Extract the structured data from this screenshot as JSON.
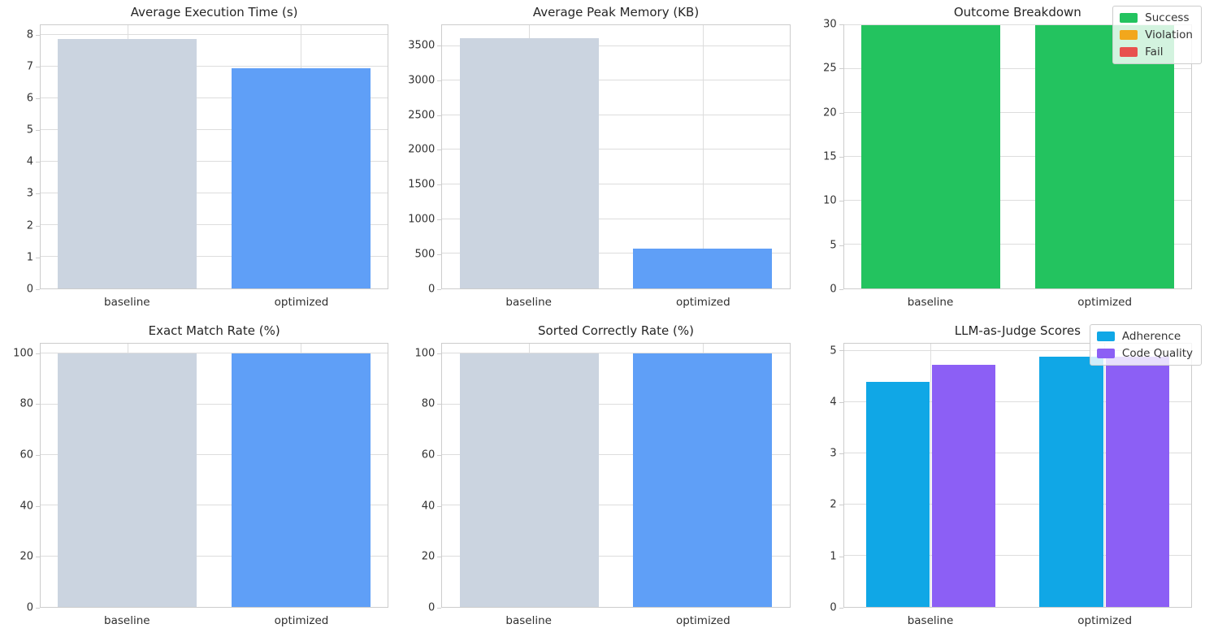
{
  "colors": {
    "baseline_bar": "#cbd4e0",
    "optimized_bar": "#5f9ff7",
    "success": "#23c35f",
    "violation": "#f2a71c",
    "fail": "#e8504e",
    "adherence": "#10a7e6",
    "code_quality": "#8c5ff5",
    "grid": "#dddddd",
    "spine": "#cccccc",
    "title_text": "#262626",
    "tick_text": "#333333"
  },
  "chart_data": [
    {
      "type": "bar",
      "title": "Average Execution Time (s)",
      "categories": [
        "baseline",
        "optimized"
      ],
      "series": [
        {
          "name": "value",
          "values": [
            7.88,
            6.96
          ]
        }
      ],
      "bar_colors": [
        "#cbd4e0",
        "#5f9ff7"
      ],
      "ylim": [
        0,
        8.32
      ],
      "yticks": [
        0,
        1,
        2,
        3,
        4,
        5,
        6,
        7,
        8
      ],
      "grid": true,
      "legend": null
    },
    {
      "type": "bar",
      "title": "Average Peak Memory (KB)",
      "categories": [
        "baseline",
        "optimized"
      ],
      "series": [
        {
          "name": "value",
          "values": [
            3610,
            570
          ]
        }
      ],
      "bar_colors": [
        "#cbd4e0",
        "#5f9ff7"
      ],
      "ylim": [
        0,
        3800
      ],
      "yticks": [
        0,
        500,
        1000,
        1500,
        2000,
        2500,
        3000,
        3500
      ],
      "grid": true,
      "legend": null
    },
    {
      "type": "stacked_bar",
      "title": "Outcome Breakdown",
      "categories": [
        "baseline",
        "optimized"
      ],
      "series": [
        {
          "name": "Success",
          "color": "#23c35f",
          "values": [
            30,
            30
          ]
        },
        {
          "name": "Violation",
          "color": "#f2a71c",
          "values": [
            0,
            0
          ]
        },
        {
          "name": "Fail",
          "color": "#e8504e",
          "values": [
            0,
            0
          ]
        }
      ],
      "ylim": [
        0,
        30
      ],
      "yticks": [
        0,
        5,
        10,
        15,
        20,
        25,
        30
      ],
      "grid": true,
      "legend": "upper-right"
    },
    {
      "type": "bar",
      "title": "Exact Match Rate (%)",
      "categories": [
        "baseline",
        "optimized"
      ],
      "series": [
        {
          "name": "value",
          "values": [
            100,
            100
          ]
        }
      ],
      "bar_colors": [
        "#cbd4e0",
        "#5f9ff7"
      ],
      "ylim": [
        0,
        104
      ],
      "yticks": [
        0,
        20,
        40,
        60,
        80,
        100
      ],
      "grid": true,
      "legend": null
    },
    {
      "type": "bar",
      "title": "Sorted Correctly Rate (%)",
      "categories": [
        "baseline",
        "optimized"
      ],
      "series": [
        {
          "name": "value",
          "values": [
            100,
            100
          ]
        }
      ],
      "bar_colors": [
        "#cbd4e0",
        "#5f9ff7"
      ],
      "ylim": [
        0,
        104
      ],
      "yticks": [
        0,
        20,
        40,
        60,
        80,
        100
      ],
      "grid": true,
      "legend": null
    },
    {
      "type": "grouped_bar",
      "title": "LLM-as-Judge Scores",
      "categories": [
        "baseline",
        "optimized"
      ],
      "series": [
        {
          "name": "Adherence",
          "color": "#10a7e6",
          "values": [
            4.4,
            4.9
          ]
        },
        {
          "name": "Code Quality",
          "color": "#8c5ff5",
          "values": [
            4.73,
            4.89
          ]
        }
      ],
      "ylim": [
        0,
        5.15
      ],
      "yticks": [
        0,
        1,
        2,
        3,
        4,
        5
      ],
      "grid": true,
      "legend": "upper-right"
    }
  ]
}
